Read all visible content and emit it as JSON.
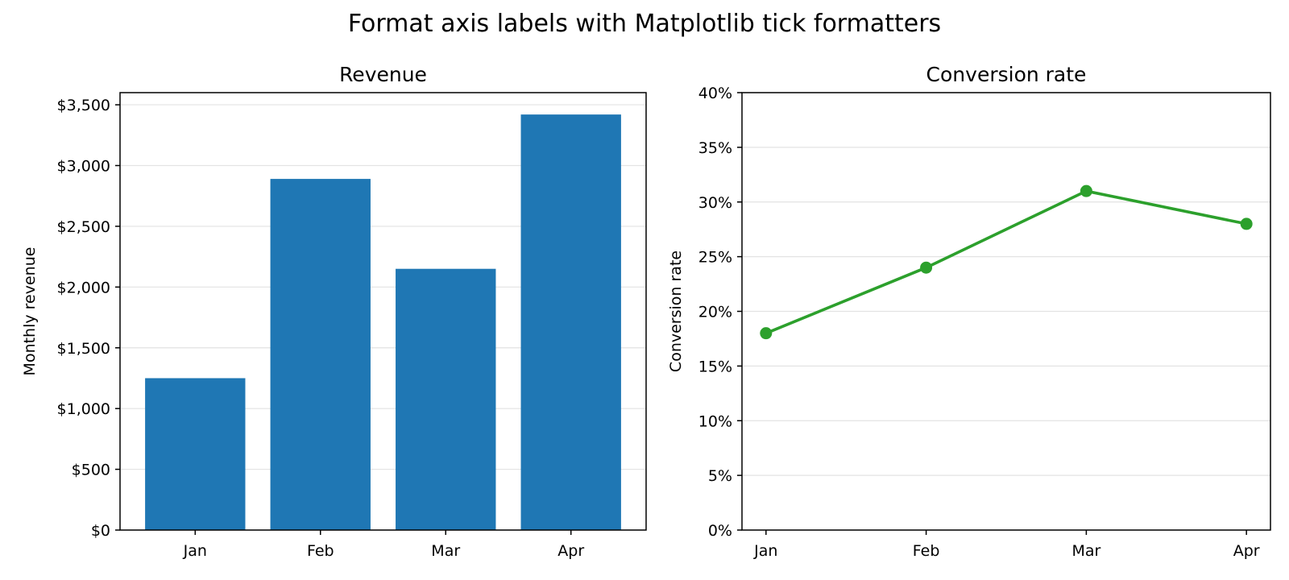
{
  "figure": {
    "suptitle": "Format axis labels with Matplotlib tick formatters"
  },
  "chart_data": [
    {
      "type": "bar",
      "title": "Revenue",
      "xlabel": "",
      "ylabel": "Monthly revenue",
      "categories": [
        "Jan",
        "Feb",
        "Mar",
        "Apr"
      ],
      "values": [
        1250,
        2890,
        2150,
        3420
      ],
      "ylim": [
        0,
        3600
      ],
      "yticks": [
        0,
        500,
        1000,
        1500,
        2000,
        2500,
        3000,
        3500
      ],
      "ytick_labels": [
        "$0",
        "$500",
        "$1,000",
        "$1,500",
        "$2,000",
        "$2,500",
        "$3,000",
        "$3,500"
      ],
      "grid": "y",
      "color": "#1f77b4"
    },
    {
      "type": "line",
      "title": "Conversion rate",
      "xlabel": "",
      "ylabel": "Conversion rate",
      "categories": [
        "Jan",
        "Feb",
        "Mar",
        "Apr"
      ],
      "values": [
        0.18,
        0.24,
        0.31,
        0.28
      ],
      "ylim": [
        0,
        0.4
      ],
      "yticks": [
        0,
        0.05,
        0.1,
        0.15,
        0.2,
        0.25,
        0.3,
        0.35,
        0.4
      ],
      "ytick_labels": [
        "0%",
        "5%",
        "10%",
        "15%",
        "20%",
        "25%",
        "30%",
        "35%",
        "40%"
      ],
      "grid": "y",
      "color": "#2ca02c",
      "marker": "circle"
    }
  ]
}
